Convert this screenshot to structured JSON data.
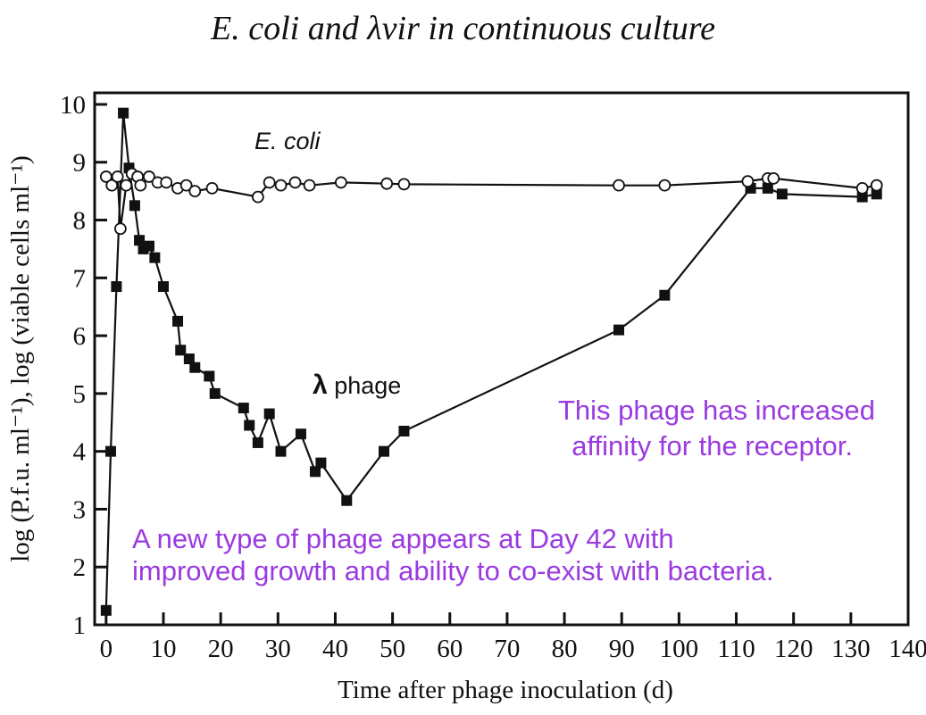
{
  "chart_data": {
    "type": "line",
    "title": "E. coli and λvir in continuous culture",
    "xlabel": "Time after phage inoculation (d)",
    "ylabel": "log (P.f.u. ml⁻¹), log (viable cells ml⁻¹)",
    "xlim": [
      -2,
      140
    ],
    "ylim": [
      1,
      10.2
    ],
    "xticks": [
      0,
      10,
      20,
      30,
      40,
      50,
      60,
      70,
      80,
      90,
      100,
      110,
      120,
      130,
      140
    ],
    "yticks": [
      1,
      2,
      3,
      4,
      5,
      6,
      7,
      8,
      9,
      10
    ],
    "grid": false,
    "series": [
      {
        "name": "E. coli",
        "marker": "open-circle",
        "x": [
          0,
          1,
          2,
          2.5,
          3.5,
          4.5,
          5.5,
          6,
          7.5,
          9,
          10.5,
          12.5,
          14,
          15.5,
          18.5,
          26.5,
          28.5,
          30.5,
          33,
          35.5,
          41,
          49,
          52,
          89.5,
          97.5,
          112,
          115.5,
          116.5,
          132,
          134.5
        ],
        "y": [
          8.75,
          8.6,
          8.75,
          7.85,
          8.6,
          8.8,
          8.75,
          8.6,
          8.75,
          8.65,
          8.65,
          8.55,
          8.6,
          8.5,
          8.55,
          8.4,
          8.65,
          8.6,
          8.65,
          8.6,
          8.65,
          8.63,
          8.62,
          8.6,
          8.6,
          8.67,
          8.72,
          8.72,
          8.55,
          8.6
        ]
      },
      {
        "name": "λ phage",
        "marker": "filled-square",
        "x": [
          0,
          0.8,
          1.8,
          3,
          4,
          5,
          5.8,
          6.5,
          7.5,
          8.5,
          10,
          12.5,
          13,
          14.5,
          15.5,
          18,
          19,
          24,
          25,
          26.5,
          28.5,
          30.5,
          34,
          36.5,
          37.5,
          42,
          48.5,
          52,
          89.5,
          97.5,
          112.5,
          115.5,
          118,
          132,
          134.5
        ],
        "y": [
          1.25,
          4,
          6.85,
          9.85,
          8.9,
          8.25,
          7.65,
          7.5,
          7.55,
          7.35,
          6.85,
          6.25,
          5.75,
          5.6,
          5.45,
          5.3,
          5,
          4.75,
          4.45,
          4.15,
          4.65,
          4,
          4.3,
          3.65,
          3.8,
          3.15,
          4,
          4.35,
          6.1,
          6.7,
          8.55,
          8.55,
          8.45,
          8.4,
          8.45
        ]
      }
    ],
    "annotations": [
      "E. coli",
      "λ phage",
      "This phage has increased",
      "affinity for the receptor.",
      "A new type of phage appears at Day 42 with",
      "improved growth and ability to co-exist with bacteria."
    ]
  },
  "labels": {
    "ecoli": "E. coli",
    "lambda_symbol": "λ",
    "phage_word": " phage",
    "note1_line1": "This phage has increased",
    "note1_line2": "affinity for the receptor.",
    "note2_line1": "A new type of phage appears at Day 42 with",
    "note2_line2": "improved growth and ability to co-exist with bacteria."
  },
  "colors": {
    "annotation": "#9a3ae0",
    "ink": "#111111"
  }
}
